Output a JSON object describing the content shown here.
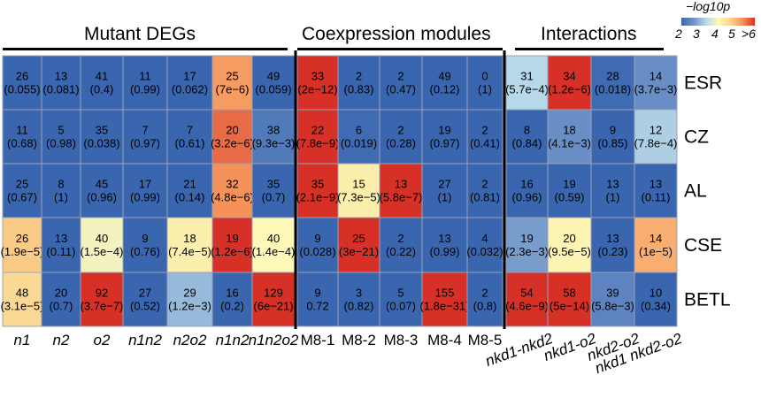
{
  "groups": {
    "mutant": "Mutant DEGs",
    "coexp": "Coexpression modules",
    "inter": "Interactions"
  },
  "legend": {
    "title": "−log10p",
    "ticks": [
      "2",
      "3",
      "4",
      "5",
      ">6"
    ],
    "colors": [
      "#3a66b0",
      "#6e93c8",
      "#b7d8e8",
      "#fdf8b8",
      "#fbd48e",
      "#f5925a",
      "#d73027"
    ]
  },
  "chart_data": {
    "type": "heatmap",
    "rows": [
      "ESR",
      "CZ",
      "AL",
      "CSE",
      "BETL"
    ],
    "columns": [
      "n1",
      "n2",
      "o2",
      "n1n2",
      "n2o2",
      "n1n2",
      "n1n2o2",
      "M8-1",
      "M8-2",
      "M8-3",
      "M8-4",
      "M8-5",
      "nkd1-nkd2",
      "nkd1-o2",
      "nkd2-o2",
      "nkd1 nkd2-o2"
    ],
    "italic_columns": [
      true,
      true,
      true,
      true,
      true,
      true,
      true,
      false,
      false,
      false,
      false,
      false,
      true,
      true,
      true,
      true
    ],
    "counts": [
      [
        "26",
        "13",
        "41",
        "11",
        "17",
        "25",
        "49",
        "33",
        "2",
        "2",
        "49",
        "0",
        "31",
        "34",
        "28",
        "14"
      ],
      [
        "11",
        "5",
        "35",
        "7",
        "7",
        "20",
        "38",
        "22",
        "6",
        "2",
        "19",
        "2",
        "8",
        "18",
        "9",
        "12"
      ],
      [
        "25",
        "8",
        "45",
        "17",
        "21",
        "32",
        "35",
        "35",
        "15",
        "13",
        "27",
        "2",
        "16",
        "19",
        "13",
        "13"
      ],
      [
        "26",
        "13",
        "40",
        "9",
        "18",
        "19",
        "40",
        "9",
        "25",
        "2",
        "13",
        "4",
        "19",
        "20",
        "13",
        "14"
      ],
      [
        "48",
        "20",
        "92",
        "27",
        "29",
        "16",
        "129",
        "9",
        "3",
        "5",
        "155",
        "2",
        "54",
        "58",
        "39",
        "10"
      ]
    ],
    "pvalues": [
      [
        "(0.055)",
        "(0.081)",
        "(0.4)",
        "(0.99)",
        "(0.062)",
        "(7e−6)",
        "(0.059)",
        "(2e−12)",
        "(0.83)",
        "(0.47)",
        "(0.12)",
        "(1)",
        "(5.7e−4)",
        "(1.2e−6)",
        "(0.018)",
        "(3.7e−3)"
      ],
      [
        "(0.68)",
        "(0.98)",
        "(0.038)",
        "(0.97)",
        "(0.61)",
        "(3.2e−6)",
        "(9.3e−3)",
        "(7.8e−9)",
        "(0.019)",
        "(0.28)",
        "(0.97)",
        "(0.41)",
        "(0.84)",
        "(4.1e−3)",
        "(0.85)",
        "(7.8e−4)"
      ],
      [
        "(0.67)",
        "(1)",
        "(0.96)",
        "(0.99)",
        "(0.14)",
        "(4.8e−6)",
        "(0.7)",
        "(2.1e−9)",
        "(7.3e−5)",
        "(5.8e−7)",
        "(1)",
        "(0.81)",
        "(0.96)",
        "(0.59)",
        "(1)",
        "(0.11)"
      ],
      [
        "(1.9e−5)",
        "(0.11)",
        "(1.5e−4)",
        "(0.76)",
        "(7.4e−5)",
        "(1.2e−6)",
        "(1.4e−4)",
        "(0.028)",
        "(3e−21)",
        "(0.22)",
        "(0.99)",
        "(0.032)",
        "(2.3e−3)",
        "(9.5e−5)",
        "(0.23)",
        "(1e−5)"
      ],
      [
        "(3.1e−5)",
        "(0.7)",
        "(3.7e−7)",
        "(0.52)",
        "(1.2e−3)",
        "(0.2)",
        "(6e−21)",
        "0.72",
        "(0.82)",
        "(0.07)",
        "(1.8e−31)",
        "(0.8)",
        "(4.6e−9)",
        "(5e−14)",
        "(5.8e−3)",
        "(0.34)"
      ]
    ],
    "neglog10p": [
      [
        1.3,
        1.1,
        0.4,
        0.0,
        1.2,
        5.2,
        1.2,
        11.7,
        0.1,
        0.3,
        0.9,
        0.0,
        3.2,
        5.9,
        1.7,
        2.4
      ],
      [
        0.2,
        0.0,
        1.4,
        0.0,
        0.2,
        5.5,
        2.0,
        8.1,
        1.7,
        0.6,
        0.0,
        0.4,
        0.1,
        2.4,
        0.1,
        3.1
      ],
      [
        0.2,
        0.0,
        0.0,
        0.0,
        0.9,
        5.3,
        0.2,
        8.7,
        4.1,
        6.2,
        0.0,
        0.1,
        0.0,
        0.2,
        0.0,
        1.0
      ],
      [
        4.7,
        1.0,
        3.8,
        0.1,
        4.1,
        5.9,
        3.9,
        1.6,
        20.5,
        0.7,
        0.0,
        1.5,
        2.6,
        4.0,
        0.6,
        5.0
      ],
      [
        4.5,
        0.2,
        6.4,
        0.3,
        2.9,
        0.7,
        20.2,
        0.1,
        0.1,
        1.2,
        30.7,
        0.1,
        8.3,
        13.3,
        2.2,
        0.5
      ]
    ],
    "color_scale": {
      "label": "−log10p",
      "min": 2,
      "max": 6
    }
  }
}
